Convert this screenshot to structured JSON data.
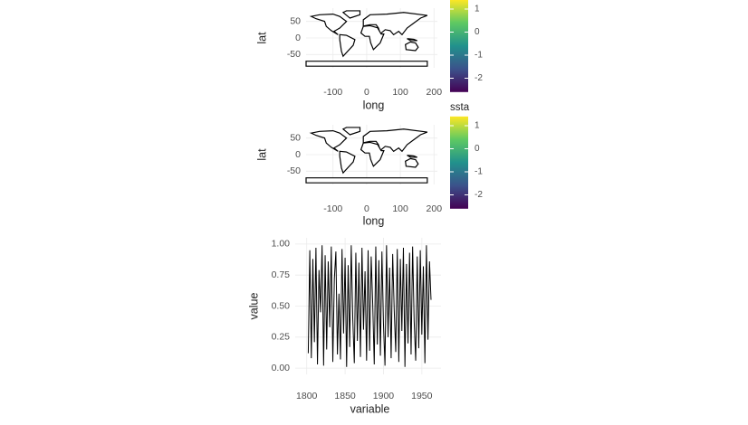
{
  "chart_data": [
    {
      "type": "map",
      "x_label": "long",
      "y_label": "lat",
      "xlim": [
        -180,
        210
      ],
      "xticks": [
        -100,
        0,
        100,
        200
      ],
      "ylim": [
        -90,
        90
      ],
      "yticks": [
        50,
        0,
        -50
      ],
      "grid": true,
      "colorbar": {
        "lim": [
          -2.6,
          1.4
        ],
        "ticks": [
          1,
          0,
          -1,
          -2
        ],
        "colors": [
          "#440154",
          "#3b528b",
          "#21918c",
          "#5ec962",
          "#fde725"
        ]
      }
    },
    {
      "type": "map",
      "x_label": "long",
      "y_label": "lat",
      "legend_title": "ssta",
      "xlim": [
        -180,
        210
      ],
      "xticks": [
        -100,
        0,
        100,
        200
      ],
      "ylim": [
        -90,
        90
      ],
      "yticks": [
        50,
        0,
        -50
      ],
      "grid": true,
      "colorbar": {
        "lim": [
          -2.6,
          1.4
        ],
        "ticks": [
          1,
          0,
          -1,
          -2
        ],
        "colors": [
          "#440154",
          "#3b528b",
          "#21918c",
          "#5ec962",
          "#fde725"
        ]
      }
    },
    {
      "type": "line",
      "x_label": "variable",
      "y_label": "value",
      "color": "#000000",
      "grid": true,
      "xlim": [
        1785,
        1975
      ],
      "xticks": [
        1800,
        1850,
        1900,
        1950
      ],
      "ylim": [
        -0.05,
        1.05
      ],
      "yticks": [
        {
          "value": 0,
          "label": "0.00"
        },
        {
          "value": 0.25,
          "label": "0.25"
        },
        {
          "value": 0.5,
          "label": "0.50"
        },
        {
          "value": 0.75,
          "label": "0.75"
        },
        {
          "value": 1,
          "label": "1.00"
        }
      ],
      "x": [
        1802,
        1804,
        1806,
        1808,
        1810,
        1812,
        1814,
        1816,
        1818,
        1820,
        1822,
        1824,
        1826,
        1828,
        1830,
        1832,
        1834,
        1836,
        1838,
        1840,
        1842,
        1844,
        1846,
        1848,
        1850,
        1852,
        1854,
        1856,
        1858,
        1860,
        1862,
        1864,
        1866,
        1868,
        1870,
        1872,
        1874,
        1876,
        1878,
        1880,
        1882,
        1884,
        1886,
        1888,
        1890,
        1892,
        1894,
        1896,
        1898,
        1900,
        1902,
        1904,
        1906,
        1908,
        1910,
        1912,
        1914,
        1916,
        1918,
        1920,
        1922,
        1924,
        1926,
        1928,
        1930,
        1932,
        1934,
        1936,
        1938,
        1940,
        1942,
        1944,
        1946,
        1948,
        1950,
        1952,
        1954,
        1956,
        1958,
        1960,
        1962
      ],
      "values": [
        0.12,
        0.95,
        0.08,
        0.88,
        0.21,
        0.97,
        0.03,
        0.79,
        0.45,
        0.99,
        0.02,
        0.91,
        0.15,
        0.86,
        0.33,
        0.98,
        0.05,
        0.72,
        0.94,
        0.11,
        0.6,
        0.07,
        0.96,
        0.28,
        0.89,
        0.01,
        0.83,
        0.17,
        0.99,
        0.4,
        0.04,
        0.93,
        0.22,
        0.85,
        0.09,
        0.97,
        0.31,
        0.78,
        0.06,
        0.95,
        0.14,
        0.9,
        0.52,
        0.03,
        0.98,
        0.19,
        0.87,
        0.1,
        0.94,
        0.36,
        0.02,
        0.99,
        0.25,
        0.81,
        0.08,
        0.92,
        0.47,
        0.13,
        0.96,
        0.05,
        0.88,
        0.3,
        0.97,
        0.01,
        0.84,
        0.2,
        0.93,
        0.11,
        0.98,
        0.38,
        0.06,
        0.9,
        0.16,
        0.95,
        0.27,
        0.82,
        0.04,
        0.99,
        0.23,
        0.86,
        0.55
      ]
    }
  ]
}
